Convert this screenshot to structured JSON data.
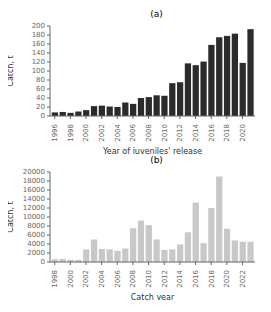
{
  "chart_data": [
    {
      "type": "bar",
      "title": "(a)",
      "x": [
        1996,
        1997,
        1998,
        1999,
        2000,
        2001,
        2002,
        2003,
        2004,
        2005,
        2006,
        2007,
        2008,
        2009,
        2010,
        2011,
        2012,
        2013,
        2014,
        2015,
        2016,
        2017,
        2018,
        2019,
        2020,
        2021
      ],
      "values": [
        8,
        9,
        7,
        10,
        13,
        22,
        23,
        21,
        20,
        30,
        27,
        40,
        42,
        46,
        45,
        73,
        75,
        117,
        113,
        121,
        158,
        175,
        178,
        183,
        118,
        193
      ],
      "color": "#2b2b2b",
      "xlabel": "Year of juveniles' release",
      "ylabel": "Catch, t",
      "xlim": [
        1995.4,
        2021.6
      ],
      "xticks": [
        1996,
        1998,
        2000,
        2002,
        2004,
        2006,
        2008,
        2010,
        2012,
        2014,
        2016,
        2018,
        2020
      ],
      "ylim": [
        0,
        200
      ],
      "yticks": [
        0,
        20,
        40,
        60,
        80,
        100,
        120,
        140,
        160,
        180,
        200
      ],
      "grid": false
    },
    {
      "type": "bar",
      "title": "(b)",
      "x": [
        1998,
        1999,
        2000,
        2001,
        2002,
        2003,
        2004,
        2005,
        2006,
        2007,
        2008,
        2009,
        2010,
        2011,
        2012,
        2013,
        2014,
        2015,
        2016,
        2017,
        2018,
        2019,
        2020,
        2021,
        2022,
        2023
      ],
      "values": [
        600,
        700,
        500,
        500,
        2800,
        5000,
        2900,
        2800,
        2500,
        3000,
        7500,
        9200,
        8200,
        5000,
        2700,
        2800,
        3900,
        6600,
        13200,
        4200,
        12000,
        19000,
        7400,
        4800,
        4500,
        4500
      ],
      "color": "#c8c8c8",
      "xlabel": "Catch year",
      "ylabel": "Catch, t",
      "xlim": [
        1997.4,
        2023.6
      ],
      "xticks": [
        1998,
        2000,
        2002,
        2004,
        2006,
        2008,
        2010,
        2012,
        2014,
        2016,
        2018,
        2020,
        2022
      ],
      "ylim": [
        0,
        20000
      ],
      "yticks": [
        0,
        2000,
        4000,
        6000,
        8000,
        10000,
        12000,
        14000,
        16000,
        18000,
        20000
      ],
      "grid": false
    }
  ]
}
